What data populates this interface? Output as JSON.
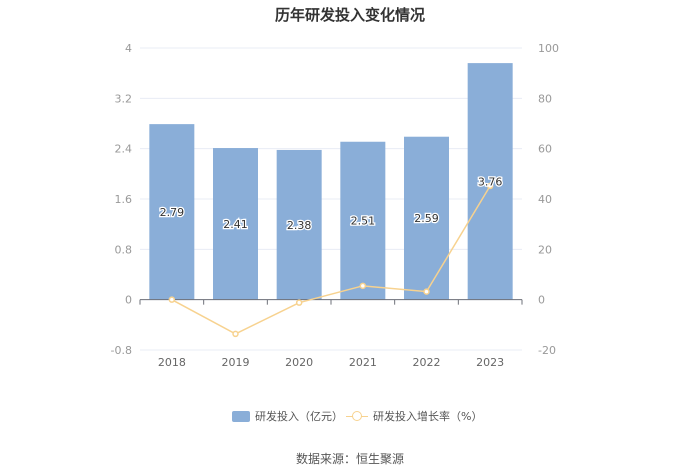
{
  "chart_data": {
    "type": "bar",
    "title": "历年研发投入变化情况",
    "categories": [
      "2018",
      "2019",
      "2020",
      "2021",
      "2022",
      "2023"
    ],
    "series": [
      {
        "name": "研发投入（亿元）",
        "type": "bar",
        "axis": "left",
        "values": [
          2.79,
          2.41,
          2.38,
          2.51,
          2.59,
          3.76
        ],
        "labels": [
          "2.79",
          "2.41",
          "2.38",
          "2.51",
          "2.59",
          "3.76"
        ]
      },
      {
        "name": "研发投入增长率（%）",
        "type": "line",
        "axis": "right",
        "values": [
          0,
          -13.6,
          -1.2,
          5.5,
          3.2,
          45.2
        ]
      }
    ],
    "y_left": {
      "ylim": [
        -0.8,
        4
      ],
      "ticks": [
        "-0.8",
        "0",
        "0.8",
        "1.6",
        "2.4",
        "3.2",
        "4"
      ]
    },
    "y_right": {
      "ylim": [
        -20,
        100
      ],
      "ticks": [
        "-20",
        "0",
        "20",
        "40",
        "60",
        "80",
        "100"
      ]
    },
    "grid": true,
    "legend_position": "bottom",
    "colors": {
      "bar": "#8aaed8",
      "line": "#f7d28f",
      "grid": "#e8ecf4",
      "axis_text": "#999999"
    }
  },
  "source_text": "数据来源：恒生聚源"
}
